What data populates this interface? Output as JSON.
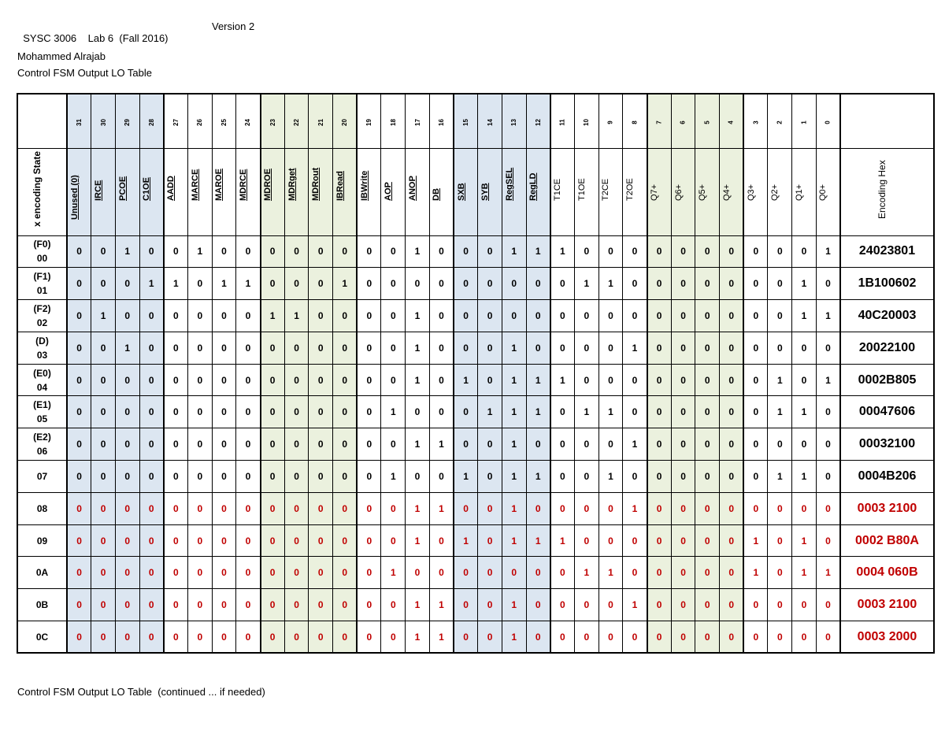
{
  "header": {
    "course": "SYSC 3006    Lab 6  (Fall 2016)",
    "version": "Version 2",
    "author": "Mohammed Alrajab",
    "table_title": "Control FSM Output LO Table"
  },
  "footer": {
    "continued_title": "Control FSM Output LO Table  (continued ... if needed)"
  },
  "colors": {
    "blue_group": "#dce6f1",
    "green_group": "#ebf1de",
    "new_rows_text": "#c00000"
  },
  "table": {
    "state_header": "x encoding State",
    "hex_header": "Encoding Hex",
    "bit_numbers": [
      "31",
      "30",
      "29",
      "28",
      "27",
      "26",
      "25",
      "24",
      "23",
      "22",
      "21",
      "20",
      "19",
      "18",
      "17",
      "16",
      "15",
      "14",
      "13",
      "12",
      "11",
      "10",
      "9",
      "8",
      "7",
      "6",
      "5",
      "4",
      "3",
      "2",
      "1",
      "0"
    ],
    "signals": [
      "Unused (0)",
      "IRCE",
      "PCOE",
      "C1OE",
      "AADD",
      "MARCE",
      "MAROE",
      "MDRCE",
      "MDROE",
      "MDRget",
      "MDRout",
      "IBRead",
      "IBWrite",
      "AOP",
      "ANOP",
      "DB",
      "SXB",
      "SYB",
      "RegSEL",
      "RegLD",
      "T1CE",
      "T1OE",
      "T2CE",
      "T2OE",
      "Q7+",
      "Q6+",
      "Q5+",
      "Q4+",
      "Q3+",
      "Q2+",
      "Q1+",
      "Q0+"
    ],
    "rows": [
      {
        "state_top": "(F0)",
        "state_bottom": "00",
        "bits": [
          "0",
          "0",
          "1",
          "0",
          "0",
          "1",
          "0",
          "0",
          "0",
          "0",
          "0",
          "0",
          "0",
          "0",
          "1",
          "0",
          "0",
          "0",
          "1",
          "1",
          "1",
          "0",
          "0",
          "0",
          "0",
          "0",
          "0",
          "0",
          "0",
          "0",
          "0",
          "1"
        ],
        "hex": "24023801",
        "highlight": false
      },
      {
        "state_top": "(F1)",
        "state_bottom": "01",
        "bits": [
          "0",
          "0",
          "0",
          "1",
          "1",
          "0",
          "1",
          "1",
          "0",
          "0",
          "0",
          "1",
          "0",
          "0",
          "0",
          "0",
          "0",
          "0",
          "0",
          "0",
          "0",
          "1",
          "1",
          "0",
          "0",
          "0",
          "0",
          "0",
          "0",
          "0",
          "1",
          "0"
        ],
        "hex": "1B100602",
        "highlight": false
      },
      {
        "state_top": "(F2)",
        "state_bottom": "02",
        "bits": [
          "0",
          "1",
          "0",
          "0",
          "0",
          "0",
          "0",
          "0",
          "1",
          "1",
          "0",
          "0",
          "0",
          "0",
          "1",
          "0",
          "0",
          "0",
          "0",
          "0",
          "0",
          "0",
          "0",
          "0",
          "0",
          "0",
          "0",
          "0",
          "0",
          "0",
          "1",
          "1"
        ],
        "hex": "40C20003",
        "highlight": false
      },
      {
        "state_top": "(D)",
        "state_bottom": "03",
        "bits": [
          "0",
          "0",
          "1",
          "0",
          "0",
          "0",
          "0",
          "0",
          "0",
          "0",
          "0",
          "0",
          "0",
          "0",
          "1",
          "0",
          "0",
          "0",
          "1",
          "0",
          "0",
          "0",
          "0",
          "1",
          "0",
          "0",
          "0",
          "0",
          "0",
          "0",
          "0",
          "0"
        ],
        "hex": "20022100",
        "highlight": false
      },
      {
        "state_top": "(E0)",
        "state_bottom": "04",
        "bits": [
          "0",
          "0",
          "0",
          "0",
          "0",
          "0",
          "0",
          "0",
          "0",
          "0",
          "0",
          "0",
          "0",
          "0",
          "1",
          "0",
          "1",
          "0",
          "1",
          "1",
          "1",
          "0",
          "0",
          "0",
          "0",
          "0",
          "0",
          "0",
          "0",
          "1",
          "0",
          "1"
        ],
        "hex": "0002B805",
        "highlight": false
      },
      {
        "state_top": "(E1)",
        "state_bottom": "05",
        "bits": [
          "0",
          "0",
          "0",
          "0",
          "0",
          "0",
          "0",
          "0",
          "0",
          "0",
          "0",
          "0",
          "0",
          "1",
          "0",
          "0",
          "0",
          "1",
          "1",
          "1",
          "0",
          "1",
          "1",
          "0",
          "0",
          "0",
          "0",
          "0",
          "0",
          "1",
          "1",
          "0"
        ],
        "hex": "00047606",
        "highlight": false
      },
      {
        "state_top": "(E2)",
        "state_bottom": "06",
        "bits": [
          "0",
          "0",
          "0",
          "0",
          "0",
          "0",
          "0",
          "0",
          "0",
          "0",
          "0",
          "0",
          "0",
          "0",
          "1",
          "1",
          "0",
          "0",
          "1",
          "0",
          "0",
          "0",
          "0",
          "1",
          "0",
          "0",
          "0",
          "0",
          "0",
          "0",
          "0",
          "0"
        ],
        "hex": "00032100",
        "highlight": false
      },
      {
        "state_top": "",
        "state_bottom": "07",
        "bits": [
          "0",
          "0",
          "0",
          "0",
          "0",
          "0",
          "0",
          "0",
          "0",
          "0",
          "0",
          "0",
          "0",
          "1",
          "0",
          "0",
          "1",
          "0",
          "1",
          "1",
          "0",
          "0",
          "1",
          "0",
          "0",
          "0",
          "0",
          "0",
          "0",
          "1",
          "1",
          "0"
        ],
        "hex": "0004B206",
        "highlight": false
      },
      {
        "state_top": "",
        "state_bottom": "08",
        "bits": [
          "0",
          "0",
          "0",
          "0",
          "0",
          "0",
          "0",
          "0",
          "0",
          "0",
          "0",
          "0",
          "0",
          "0",
          "1",
          "1",
          "0",
          "0",
          "1",
          "0",
          "0",
          "0",
          "0",
          "1",
          "0",
          "0",
          "0",
          "0",
          "0",
          "0",
          "0",
          "0"
        ],
        "hex": "0003 2100",
        "highlight": true
      },
      {
        "state_top": "",
        "state_bottom": "09",
        "bits": [
          "0",
          "0",
          "0",
          "0",
          "0",
          "0",
          "0",
          "0",
          "0",
          "0",
          "0",
          "0",
          "0",
          "0",
          "1",
          "0",
          "1",
          "0",
          "1",
          "1",
          "1",
          "0",
          "0",
          "0",
          "0",
          "0",
          "0",
          "0",
          "1",
          "0",
          "1",
          "0"
        ],
        "hex": "0002 B80A",
        "highlight": true
      },
      {
        "state_top": "",
        "state_bottom": "0A",
        "bits": [
          "0",
          "0",
          "0",
          "0",
          "0",
          "0",
          "0",
          "0",
          "0",
          "0",
          "0",
          "0",
          "0",
          "1",
          "0",
          "0",
          "0",
          "0",
          "0",
          "0",
          "0",
          "1",
          "1",
          "0",
          "0",
          "0",
          "0",
          "0",
          "1",
          "0",
          "1",
          "1"
        ],
        "hex": "0004 060B",
        "highlight": true
      },
      {
        "state_top": "",
        "state_bottom": "0B",
        "bits": [
          "0",
          "0",
          "0",
          "0",
          "0",
          "0",
          "0",
          "0",
          "0",
          "0",
          "0",
          "0",
          "0",
          "0",
          "1",
          "1",
          "0",
          "0",
          "1",
          "0",
          "0",
          "0",
          "0",
          "1",
          "0",
          "0",
          "0",
          "0",
          "0",
          "0",
          "0",
          "0"
        ],
        "hex": "0003 2100",
        "highlight": true
      },
      {
        "state_top": "",
        "state_bottom": "0C",
        "bits": [
          "0",
          "0",
          "0",
          "0",
          "0",
          "0",
          "0",
          "0",
          "0",
          "0",
          "0",
          "0",
          "0",
          "0",
          "1",
          "1",
          "0",
          "0",
          "1",
          "0",
          "0",
          "0",
          "0",
          "0",
          "0",
          "0",
          "0",
          "0",
          "0",
          "0",
          "0",
          "0"
        ],
        "hex": "0003 2000",
        "highlight": true
      }
    ]
  }
}
